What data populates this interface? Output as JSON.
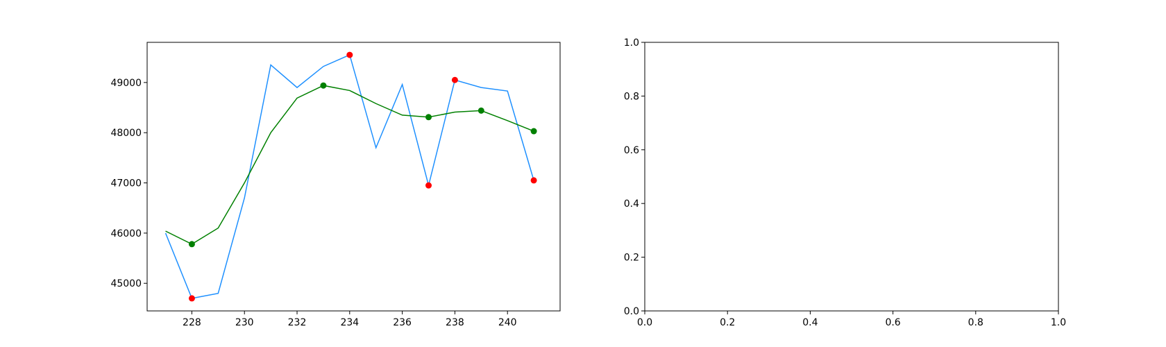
{
  "chart_data": [
    {
      "type": "line",
      "title": "",
      "xlabel": "",
      "ylabel": "",
      "xlim": [
        226.3,
        242.0
      ],
      "ylim": [
        44450,
        49800
      ],
      "xticks": [
        228,
        230,
        232,
        234,
        236,
        238,
        240
      ],
      "yticks": [
        45000,
        46000,
        47000,
        48000,
        49000
      ],
      "grid": false,
      "series": [
        {
          "color": "#1e90ff",
          "marker": "none",
          "x": [
            227,
            228,
            229,
            230,
            231,
            232,
            233,
            234,
            235,
            236,
            237,
            238,
            239,
            240,
            241
          ],
          "y": [
            46000,
            44700,
            44800,
            46700,
            49350,
            48900,
            49320,
            49550,
            47700,
            48960,
            46950,
            49050,
            48900,
            48830,
            47050
          ]
        },
        {
          "color": "#008000",
          "marker": "none",
          "x": [
            227,
            228,
            229,
            230,
            231,
            232,
            233,
            234,
            235,
            236,
            237,
            238,
            239,
            240,
            241
          ],
          "y": [
            46040,
            45780,
            46100,
            47000,
            48000,
            48690,
            48940,
            48840,
            48580,
            48350,
            48310,
            48410,
            48440,
            48240,
            48030
          ]
        },
        {
          "color": "#ff0000",
          "marker": "circle",
          "scatter": true,
          "x": [
            228,
            234,
            237,
            238,
            241
          ],
          "y": [
            44700,
            49550,
            46950,
            49050,
            47050
          ]
        },
        {
          "color": "#008000",
          "marker": "circle",
          "scatter": true,
          "x": [
            228,
            233,
            237,
            239,
            241
          ],
          "y": [
            45780,
            48940,
            48310,
            48440,
            48030
          ]
        }
      ]
    },
    {
      "type": "line",
      "title": "",
      "xlabel": "",
      "ylabel": "",
      "xlim": [
        0.0,
        1.0
      ],
      "ylim": [
        0.0,
        1.0
      ],
      "xticks": [
        0.0,
        0.2,
        0.4,
        0.6,
        0.8,
        1.0
      ],
      "yticks": [
        0.0,
        0.2,
        0.4,
        0.6,
        0.8,
        1.0
      ],
      "grid": false,
      "series": []
    }
  ]
}
